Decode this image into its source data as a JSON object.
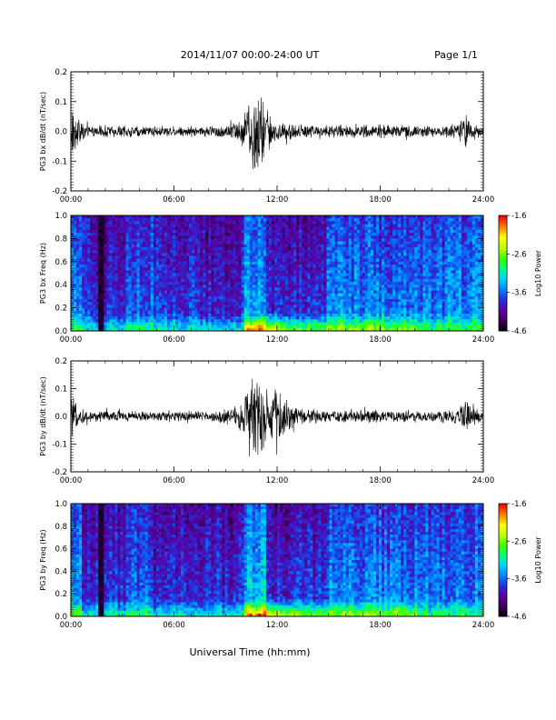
{
  "header": {
    "title": "2014/11/07  00:00-24:00 UT",
    "page": "Page 1/1"
  },
  "footer": {
    "xlabel": "Universal Time (hh:mm)"
  },
  "colors": {
    "trace": "#000000",
    "colormap": [
      "#000000",
      "#3b0055",
      "#5a00a0",
      "#2a2ad8",
      "#0080ff",
      "#00d0ff",
      "#00ff80",
      "#40ff00",
      "#c0ff00",
      "#ffff00",
      "#ff8000",
      "#ff0000"
    ]
  },
  "chart_data": [
    {
      "type": "line",
      "ylabel": "PG3 bx dB/dt (nT/sec)",
      "ylim": [
        -0.2,
        0.2
      ],
      "yticks": [
        "0.2",
        "0.1",
        "0.0",
        "-0.1",
        "-0.2"
      ],
      "xticks": [
        "00:00",
        "06:00",
        "12:00",
        "18:00",
        "24:00"
      ],
      "xlim_hours": [
        0,
        24
      ],
      "envelope": {
        "x_hours": [
          0,
          0.3,
          1.0,
          2.0,
          4.0,
          6.0,
          8.0,
          9.5,
          10.3,
          10.7,
          11.0,
          11.5,
          12.0,
          13.0,
          15.0,
          17.0,
          19.0,
          21.0,
          22.5,
          23.0,
          23.3,
          24.0
        ],
        "amplitude": [
          0.12,
          0.06,
          0.02,
          0.025,
          0.02,
          0.02,
          0.02,
          0.035,
          0.09,
          0.18,
          0.15,
          0.08,
          0.04,
          0.03,
          0.025,
          0.025,
          0.025,
          0.02,
          0.03,
          0.06,
          0.04,
          0.02
        ]
      }
    },
    {
      "type": "heatmap",
      "ylabel": "PG3 bx Freq (Hz)",
      "ylim": [
        0.0,
        1.0
      ],
      "yticks": [
        "1.0",
        "0.8",
        "0.6",
        "0.4",
        "0.2",
        "0.0"
      ],
      "xticks": [
        "00:00",
        "06:00",
        "12:00",
        "18:00",
        "24:00"
      ],
      "colorbar": {
        "label": "Log10 Power",
        "range": [
          -4.6,
          -1.6
        ],
        "ticks": [
          "-1.6",
          "-2.6",
          "-3.6",
          "-4.6"
        ]
      }
    },
    {
      "type": "line",
      "ylabel": "PG3 by dB/dt (nT/sec)",
      "ylim": [
        -0.2,
        0.2
      ],
      "yticks": [
        "0.2",
        "0.1",
        "0.0",
        "-0.1",
        "-0.2"
      ],
      "xticks": [
        "00:00",
        "06:00",
        "12:00",
        "18:00",
        "24:00"
      ],
      "xlim_hours": [
        0,
        24
      ],
      "envelope": {
        "x_hours": [
          0,
          0.3,
          1.0,
          2.0,
          4.0,
          6.0,
          8.0,
          9.5,
          10.3,
          10.7,
          11.0,
          11.5,
          12.0,
          13.0,
          15.0,
          17.0,
          19.0,
          21.0,
          22.5,
          23.0,
          23.3,
          24.0
        ],
        "amplitude": [
          0.09,
          0.05,
          0.02,
          0.025,
          0.02,
          0.02,
          0.02,
          0.04,
          0.1,
          0.19,
          0.15,
          0.07,
          0.16,
          0.035,
          0.025,
          0.025,
          0.025,
          0.02,
          0.03,
          0.08,
          0.04,
          0.02
        ]
      }
    },
    {
      "type": "heatmap",
      "ylabel": "PG3 by Freq (Hz)",
      "ylim": [
        0.0,
        1.0
      ],
      "yticks": [
        "1.0",
        "0.8",
        "0.6",
        "0.4",
        "0.2",
        "0.0"
      ],
      "xticks": [
        "00:00",
        "06:00",
        "12:00",
        "18:00",
        "24:00"
      ],
      "colorbar": {
        "label": "Log10 Power",
        "range": [
          -4.6,
          -1.6
        ],
        "ticks": [
          "-1.6",
          "-2.6",
          "-3.6",
          "-4.6"
        ]
      }
    }
  ]
}
